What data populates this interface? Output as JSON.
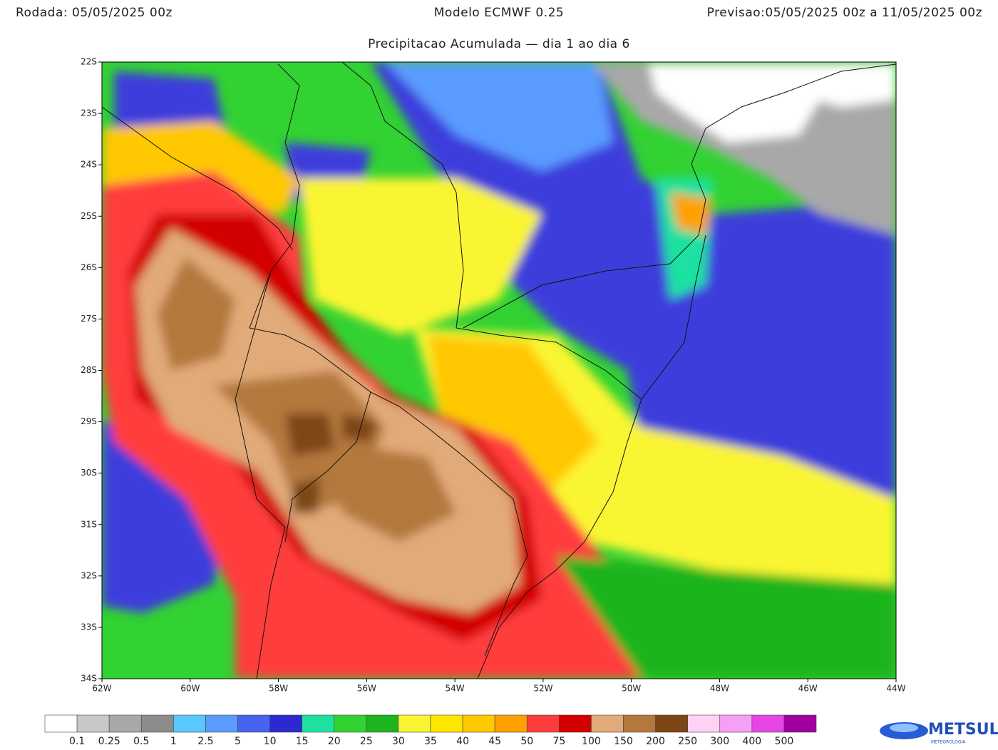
{
  "header": {
    "run": "Rodada: 05/05/2025 00z",
    "model": "Modelo ECMWF 0.25",
    "forecast": "Previsao:05/05/2025 00z a 11/05/2025 00z",
    "subtitle": "Precipitacao Acumulada — dia 1 ao dia 6"
  },
  "map": {
    "lat_labels": [
      "22S",
      "23S",
      "24S",
      "25S",
      "26S",
      "27S",
      "28S",
      "29S",
      "30S",
      "31S",
      "32S",
      "33S",
      "34S"
    ],
    "lon_labels": [
      "62W",
      "60W",
      "58W",
      "56W",
      "54W",
      "52W",
      "50W",
      "48W",
      "46W",
      "44W"
    ]
  },
  "colorbar": {
    "labels": [
      "0.1",
      "0.25",
      "0.5",
      "1",
      "2.5",
      "5",
      "10",
      "15",
      "20",
      "25",
      "30",
      "35",
      "40",
      "45",
      "50",
      "75",
      "100",
      "150",
      "200",
      "250",
      "300",
      "400",
      "500"
    ],
    "colors": [
      "#ffffff",
      "#c8c8c8",
      "#a8a8a8",
      "#8c8c8c",
      "#5ac8ff",
      "#5a9bff",
      "#4664f0",
      "#2d28d2",
      "#1ee1a0",
      "#32d232",
      "#1eb41e",
      "#faf532",
      "#ffe600",
      "#ffc800",
      "#ffa000",
      "#ff3c3c",
      "#d20000",
      "#e1aa78",
      "#b4783c",
      "#7d4614",
      "#ffd2f5",
      "#f5a0f5",
      "#e646e6",
      "#a000a0"
    ]
  },
  "logo": {
    "name": "METSUL",
    "tagline": "METEOROLOGIA"
  }
}
